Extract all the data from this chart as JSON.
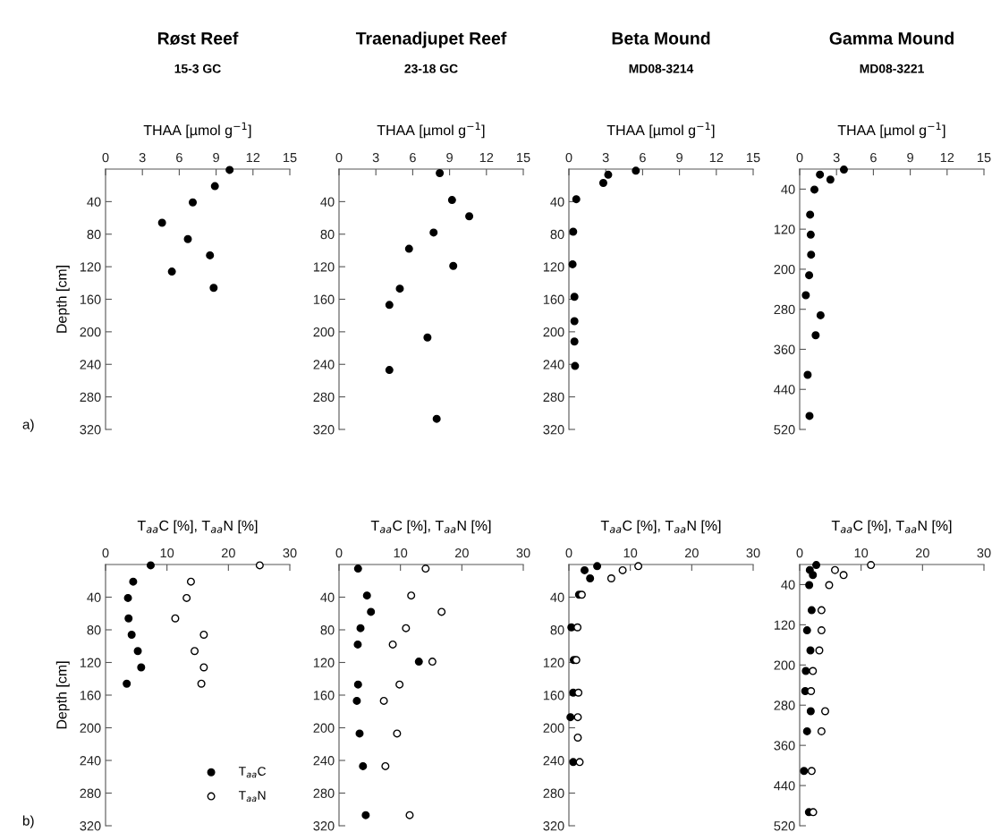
{
  "chart_data": [
    {
      "type": "scatter",
      "title": "Røst Reef",
      "subtitle": "15-3 GC",
      "xlabel": "THAA [µmol g$^{−1}$]",
      "ylabel": "Depth [cm]",
      "xlim": [
        0,
        15
      ],
      "xticks": [
        0,
        3,
        6,
        9,
        12,
        15
      ],
      "ylim": [
        320,
        0
      ],
      "yticks": [
        40,
        80,
        120,
        160,
        200,
        240,
        280,
        320
      ],
      "marker": "circle",
      "annotations": [
        "a)"
      ],
      "series": [
        {
          "color": "#000000",
          "x": [
            10.1,
            8.9,
            7.1,
            4.6,
            6.7,
            8.5,
            5.4,
            8.8
          ],
          "values": [
            1,
            21,
            41,
            66,
            86,
            106,
            126,
            146
          ]
        }
      ]
    },
    {
      "type": "scatter",
      "title": "Traenadjupet Reef",
      "subtitle": "23-18 GC",
      "xlabel": "THAA [µmol g$^{−1}$]",
      "xlim": [
        0,
        15
      ],
      "xticks": [
        0,
        3,
        6,
        9,
        12,
        15
      ],
      "ylim": [
        320,
        0
      ],
      "yticks": [
        40,
        80,
        120,
        160,
        200,
        240,
        280,
        320
      ],
      "marker": "circle",
      "series": [
        {
          "color": "#000000",
          "x": [
            8.2,
            9.2,
            10.6,
            7.7,
            5.7,
            9.3,
            4.95,
            4.1,
            7.2,
            4.1,
            7.95
          ],
          "values": [
            5,
            38,
            58,
            78,
            98,
            119,
            147,
            167,
            207,
            247,
            307
          ]
        }
      ]
    },
    {
      "type": "scatter",
      "title": "Beta Mound",
      "subtitle": "MD08-3214",
      "xlabel": "THAA [µmol g$^{−1}$]",
      "xlim": [
        0,
        15
      ],
      "xticks": [
        0,
        3,
        6,
        9,
        12,
        15
      ],
      "ylim": [
        320,
        0
      ],
      "yticks": [
        40,
        80,
        120,
        160,
        200,
        240,
        280,
        320
      ],
      "marker": "circle",
      "series": [
        {
          "color": "#000000",
          "x": [
            5.45,
            3.2,
            2.8,
            0.6,
            0.35,
            0.3,
            0.45,
            0.45,
            0.45,
            0.5
          ],
          "values": [
            2,
            7,
            17,
            37,
            77,
            117,
            157,
            187,
            212,
            242
          ]
        }
      ]
    },
    {
      "type": "scatter",
      "title": "Gamma Mound",
      "subtitle": "MD08-3221",
      "xlabel": "THAA [µmol g$^{−1}$]",
      "xlim": [
        0,
        15
      ],
      "xticks": [
        0,
        3,
        6,
        9,
        12,
        15
      ],
      "ylim": [
        520,
        0
      ],
      "yticks": [
        40,
        120,
        200,
        280,
        360,
        440,
        520
      ],
      "marker": "circle",
      "series": [
        {
          "color": "#000000",
          "x": [
            3.6,
            1.65,
            2.5,
            1.2,
            0.85,
            0.9,
            0.93,
            0.77,
            0.5,
            1.7,
            1.3,
            0.65,
            0.8
          ],
          "values": [
            1,
            11,
            21,
            41,
            91,
            131,
            171,
            212,
            252,
            292,
            332,
            411,
            493
          ]
        }
      ]
    },
    {
      "type": "scatter",
      "xlabel": "T$_{aa}$C [%], T$_{aa}$N [%]",
      "ylabel": "Depth [cm]",
      "xlim": [
        0,
        30
      ],
      "xticks": [
        0,
        10,
        20,
        30
      ],
      "ylim": [
        320,
        0
      ],
      "yticks": [
        40,
        80,
        120,
        160,
        200,
        240,
        280,
        320
      ],
      "marker": "circle",
      "legend": "bottom right",
      "annotations": [
        "b)"
      ],
      "series": [
        {
          "name": "T$_{aa}$C",
          "color": "#000000",
          "x": [
            7.35,
            4.5,
            3.65,
            3.75,
            4.25,
            5.25,
            5.8,
            3.45
          ],
          "values": [
            1,
            21,
            41,
            66,
            86,
            106,
            126,
            146
          ]
        },
        {
          "name": "T$_{aa}$N",
          "color": "#ffffff",
          "x": [
            25.1,
            13.9,
            13.2,
            11.35,
            16.0,
            14.5,
            16.0,
            15.6
          ],
          "values": [
            1,
            21,
            41,
            66,
            86,
            106,
            126,
            146
          ]
        }
      ]
    },
    {
      "type": "scatter",
      "xlabel": "T$_{aa}$C [%], T$_{aa}$N [%]",
      "xlim": [
        0,
        30
      ],
      "xticks": [
        0,
        10,
        20,
        30
      ],
      "ylim": [
        320,
        0
      ],
      "yticks": [
        40,
        80,
        120,
        160,
        200,
        240,
        280,
        320
      ],
      "marker": "circle",
      "series": [
        {
          "color": "#000000",
          "x": [
            3.1,
            4.55,
            5.2,
            3.5,
            3.05,
            13.0,
            3.1,
            2.9,
            3.35,
            3.9,
            4.35
          ],
          "values": [
            5,
            38,
            58,
            78,
            98,
            119,
            147,
            167,
            207,
            247,
            307
          ]
        },
        {
          "color": "#ffffff",
          "x": [
            14.1,
            11.75,
            16.7,
            10.9,
            8.75,
            15.2,
            9.85,
            7.3,
            9.45,
            7.55,
            11.5
          ],
          "values": [
            5,
            38,
            58,
            78,
            98,
            119,
            147,
            167,
            207,
            247,
            307
          ]
        }
      ]
    },
    {
      "type": "scatter",
      "xlabel": "T$_{aa}$C [%], T$_{aa}$N [%]",
      "xlim": [
        0,
        30
      ],
      "xticks": [
        0,
        10,
        20,
        30
      ],
      "ylim": [
        320,
        0
      ],
      "yticks": [
        40,
        80,
        120,
        160,
        200,
        240,
        280,
        320
      ],
      "marker": "circle",
      "series": [
        {
          "color": "#000000",
          "x": [
            4.6,
            2.55,
            3.45,
            1.65,
            0.4,
            0.8,
            0.7,
            0.25,
            null,
            0.7
          ],
          "values": [
            2,
            7,
            17,
            37,
            77,
            117,
            157,
            187,
            null,
            242
          ]
        },
        {
          "color": "#ffffff",
          "x": [
            11.3,
            8.75,
            6.9,
            2.1,
            1.4,
            1.2,
            1.55,
            1.45,
            1.45,
            1.75
          ],
          "values": [
            2,
            7,
            17,
            37,
            77,
            117,
            157,
            187,
            212,
            242
          ]
        }
      ]
    },
    {
      "type": "scatter",
      "xlabel": "T$_{aa}$C [%], T$_{aa}$N [%]",
      "xlim": [
        0,
        30
      ],
      "xticks": [
        0,
        10,
        20,
        30
      ],
      "ylim": [
        520,
        0
      ],
      "yticks": [
        40,
        120,
        200,
        280,
        360,
        440,
        520
      ],
      "marker": "circle",
      "series": [
        {
          "color": "#000000",
          "x": [
            2.7,
            1.65,
            2.15,
            1.55,
            1.95,
            1.2,
            1.75,
            1.0,
            0.9,
            1.8,
            1.2,
            0.7,
            1.5
          ],
          "values": [
            1,
            11,
            21,
            41,
            91,
            131,
            171,
            212,
            252,
            292,
            332,
            411,
            493
          ]
        },
        {
          "color": "#ffffff",
          "x": [
            11.6,
            5.75,
            7.15,
            4.8,
            3.55,
            3.55,
            3.2,
            2.15,
            1.85,
            4.15,
            3.55,
            1.95,
            2.2
          ],
          "values": [
            1,
            11,
            21,
            41,
            91,
            131,
            171,
            212,
            252,
            292,
            332,
            411,
            493
          ]
        }
      ]
    }
  ]
}
